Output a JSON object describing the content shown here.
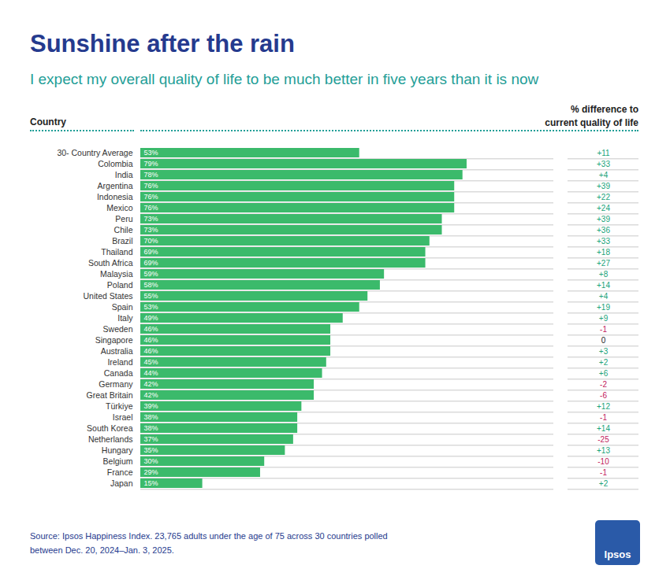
{
  "chart_data": {
    "type": "bar",
    "orientation": "horizontal",
    "title": "Sunshine after the rain",
    "subtitle": "I expect my overall quality of life to be much better in five years than it is now",
    "ylabel": "Country",
    "categories": [
      "30- Country Average",
      "Colombia",
      "India",
      "Argentina",
      "Indonesia",
      "Mexico",
      "Peru",
      "Chile",
      "Brazil",
      "Thailand",
      "South Africa",
      "Malaysia",
      "Poland",
      "United States",
      "Spain",
      "Italy",
      "Sweden",
      "Singapore",
      "Australia",
      "Ireland",
      "Canada",
      "Germany",
      "Great Britain",
      "Türkiye",
      "Israel",
      "South Korea",
      "Netherlands",
      "Hungary",
      "Belgium",
      "France",
      "Japan"
    ],
    "values": [
      53,
      79,
      78,
      76,
      76,
      76,
      73,
      73,
      70,
      69,
      69,
      59,
      58,
      55,
      53,
      49,
      46,
      46,
      46,
      45,
      44,
      42,
      42,
      39,
      38,
      38,
      37,
      35,
      30,
      29,
      15
    ],
    "value_labels": [
      "53%",
      "79%",
      "78%",
      "76%",
      "76%",
      "76%",
      "73%",
      "73%",
      "70%",
      "69%",
      "69%",
      "59%",
      "58%",
      "55%",
      "53%",
      "49%",
      "46%",
      "46%",
      "46%",
      "45%",
      "44%",
      "42%",
      "42%",
      "39%",
      "38%",
      "38%",
      "37%",
      "35%",
      "30%",
      "29%",
      "15%"
    ],
    "data_labels": true,
    "color": "#3bba6b",
    "xlim": [
      0,
      100
    ],
    "tick_labels": "y",
    "difference": {
      "title": [
        "% difference to",
        "current quality of life"
      ],
      "values": [
        11,
        33,
        4,
        39,
        22,
        24,
        39,
        36,
        33,
        18,
        27,
        8,
        14,
        4,
        19,
        9,
        -1,
        0,
        3,
        2,
        6,
        -2,
        -6,
        12,
        -1,
        14,
        -25,
        13,
        -10,
        -1,
        2
      ],
      "value_labels": [
        "+11",
        "+33",
        "+4",
        "+39",
        "+22",
        "+24",
        "+39",
        "+36",
        "+33",
        "+18",
        "+27",
        "+8",
        "+14",
        "+4",
        "+19",
        "+9",
        "-1",
        "0",
        "+3",
        "+2",
        "+6",
        "-2",
        "-6",
        "+12",
        "-1",
        "+14",
        "-25",
        "+13",
        "-10",
        "-1",
        "+2"
      ],
      "colors": [
        "#1aa37a",
        "#1aa37a",
        "#1aa37a",
        "#1aa37a",
        "#1aa37a",
        "#1aa37a",
        "#1aa37a",
        "#1aa37a",
        "#1aa37a",
        "#1aa37a",
        "#1aa37a",
        "#1aa37a",
        "#1aa37a",
        "#1aa37a",
        "#1aa37a",
        "#1aa37a",
        "#c2185b",
        "#222222",
        "#1aa37a",
        "#1aa37a",
        "#1aa37a",
        "#c2185b",
        "#c2185b",
        "#1aa37a",
        "#c2185b",
        "#1aa37a",
        "#c2185b",
        "#1aa37a",
        "#c2185b",
        "#c2185b",
        "#1aa37a"
      ]
    },
    "source": [
      "Source: Ipsos Happiness Index. 23,765 adults under the age of 75 across 30 countries polled",
      "between Dec. 20, 2024–Jan. 3, 2025."
    ],
    "logo": "Ipsos"
  }
}
